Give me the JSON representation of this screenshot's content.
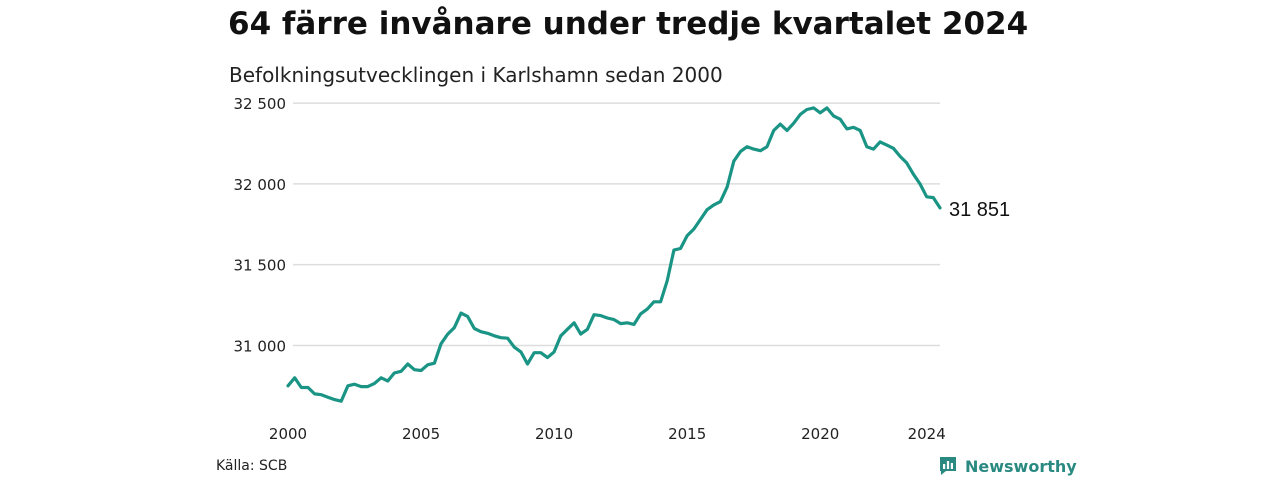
{
  "title": "64 färre invånare under tredje kvartalet 2024",
  "subtitle": "Befolkningsutvecklingen i Karlshamn sedan 2000",
  "source": "Källa: SCB",
  "brand": {
    "name": "Newsworthy",
    "icon": "newsworthy-logo-icon"
  },
  "colors": {
    "line": "#1a9484",
    "grid": "#dddddd",
    "brand": "#2a8a82"
  },
  "chart_data": {
    "type": "line",
    "title": "64 färre invånare under tredje kvartalet 2024",
    "xlabel": "",
    "ylabel": "",
    "xlim": [
      2000,
      2024.5
    ],
    "ylim": [
      30650,
      32550
    ],
    "grid": true,
    "legend": "none",
    "xticks": [
      2000,
      2005,
      2010,
      2015,
      2020,
      2024
    ],
    "xtick_labels": [
      "2000",
      "2005",
      "2010",
      "2015",
      "2020",
      "2024"
    ],
    "yticks": [
      31000,
      31500,
      32000,
      32500
    ],
    "ytick_labels": [
      "31 000",
      "31 500",
      "32 000",
      "32 500"
    ],
    "end_label": "31 851",
    "series": [
      {
        "x": [
          2000,
          2000.25,
          2000.5,
          2000.75,
          2001,
          2001.25,
          2001.5,
          2001.75,
          2002,
          2002.25,
          2002.5,
          2002.75,
          2003,
          2003.25,
          2003.5,
          2003.75,
          2004,
          2004.25,
          2004.5,
          2004.75,
          2005,
          2005.25,
          2005.5,
          2005.75,
          2006,
          2006.25,
          2006.5,
          2006.75,
          2007,
          2007.25,
          2007.5,
          2007.75,
          2008,
          2008.25,
          2008.5,
          2008.75,
          2009,
          2009.25,
          2009.5,
          2009.75,
          2010,
          2010.25,
          2010.5,
          2010.75,
          2011,
          2011.25,
          2011.5,
          2011.75,
          2012,
          2012.25,
          2012.5,
          2012.75,
          2013,
          2013.25,
          2013.5,
          2013.75,
          2014,
          2014.25,
          2014.5,
          2014.75,
          2015,
          2015.25,
          2015.5,
          2015.75,
          2016,
          2016.25,
          2016.5,
          2016.75,
          2017,
          2017.25,
          2017.5,
          2017.75,
          2018,
          2018.25,
          2018.5,
          2018.75,
          2019,
          2019.25,
          2019.5,
          2019.75,
          2020,
          2020.25,
          2020.5,
          2020.75,
          2021,
          2021.25,
          2021.5,
          2021.75,
          2022,
          2022.25,
          2022.5,
          2022.75,
          2023,
          2023.25,
          2023.5,
          2023.75,
          2024,
          2024.25,
          2024.5
        ],
        "y": [
          30750,
          30800,
          30740,
          30740,
          30700,
          30695,
          30680,
          30665,
          30655,
          30750,
          30760,
          30745,
          30745,
          30765,
          30800,
          30780,
          30830,
          30840,
          30885,
          30850,
          30845,
          30880,
          30890,
          31010,
          31070,
          31110,
          31200,
          31180,
          31105,
          31085,
          31075,
          31060,
          31048,
          31045,
          30990,
          30960,
          30885,
          30955,
          30955,
          30925,
          30960,
          31060,
          31100,
          31140,
          31070,
          31100,
          31190,
          31185,
          31170,
          31160,
          31135,
          31140,
          31130,
          31195,
          31225,
          31270,
          31270,
          31400,
          31590,
          31600,
          31680,
          31720,
          31780,
          31840,
          31870,
          31890,
          31980,
          32140,
          32200,
          32230,
          32215,
          32205,
          32230,
          32330,
          32370,
          32330,
          32375,
          32430,
          32460,
          32470,
          32440,
          32470,
          32420,
          32400,
          32340,
          32350,
          32330,
          32230,
          32215,
          32260,
          32240,
          32220,
          32170,
          32130,
          32060,
          32000,
          31920,
          31915,
          31851
        ]
      }
    ]
  }
}
